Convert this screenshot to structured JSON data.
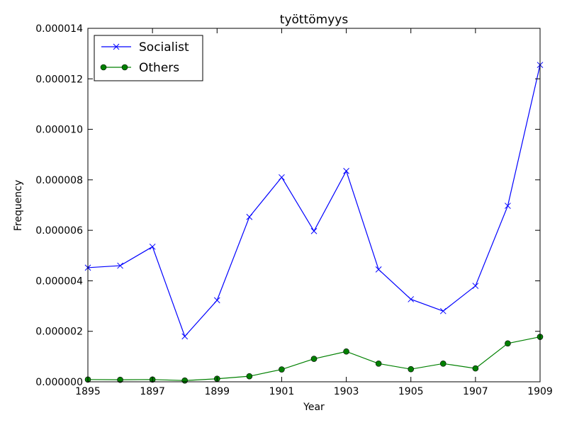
{
  "chart_data": {
    "type": "line",
    "title": "työttömyys",
    "xlabel": "Year",
    "ylabel": "Frequency",
    "x": [
      1895,
      1896,
      1897,
      1898,
      1899,
      1900,
      1901,
      1902,
      1903,
      1904,
      1905,
      1906,
      1907,
      1908,
      1909
    ],
    "xlim": [
      1895,
      1909
    ],
    "ylim": [
      0,
      1.4e-05
    ],
    "xticks": [
      "1895",
      "1897",
      "1899",
      "1901",
      "1903",
      "1905",
      "1907",
      "1909"
    ],
    "yticks": [
      "0.000000",
      "0.000002",
      "0.000004",
      "0.000006",
      "0.000008",
      "0.000010",
      "0.000012",
      "0.000014"
    ],
    "legend_position": "top-left",
    "grid": false,
    "series": [
      {
        "name": "Socialist",
        "color": "#0000ff",
        "marker": "x",
        "values": [
          4.52e-06,
          4.6e-06,
          5.35e-06,
          1.8e-06,
          3.23e-06,
          6.53e-06,
          8.1e-06,
          5.97e-06,
          8.35e-06,
          4.45e-06,
          3.27e-06,
          2.8e-06,
          3.8e-06,
          6.97e-06,
          1.255e-05
        ]
      },
      {
        "name": "Others",
        "color": "#008000",
        "marker": "o",
        "values": [
          9e-08,
          8e-08,
          9e-08,
          5e-08,
          1.2e-07,
          2.2e-07,
          4.9e-07,
          9.1e-07,
          1.2e-06,
          7.2e-07,
          5e-07,
          7.2e-07,
          5.3e-07,
          1.52e-06,
          1.78e-06
        ]
      }
    ]
  }
}
